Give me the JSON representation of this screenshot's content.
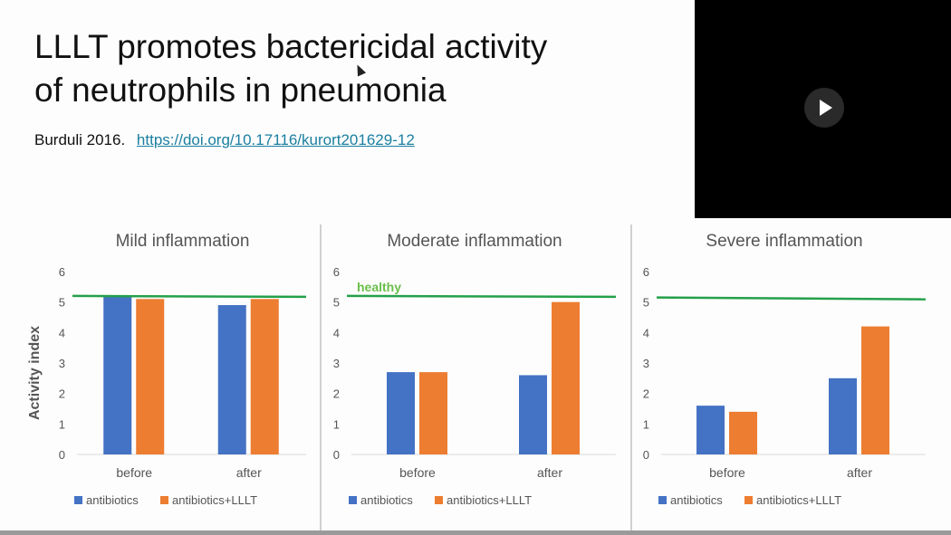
{
  "slide": {
    "title_line1": "LLLT promotes bactericidal activity",
    "title_line2": "of neutrophils in pneumonia",
    "citation": "Burduli 2016.",
    "link": "https://doi.org/10.17116/kurort201629-12"
  },
  "video": {
    "play_icon": "play-icon"
  },
  "colors": {
    "antibiotics": "#4472c4",
    "antibiotics_lllt": "#ed7d31",
    "healthy": "#24a04a"
  },
  "shared_ylabel": "Activity index",
  "chart_data": [
    {
      "type": "bar",
      "title": "Mild inflammation",
      "categories": [
        "before",
        "after"
      ],
      "series": [
        {
          "name": "antibiotics",
          "values": [
            5.2,
            4.9
          ]
        },
        {
          "name": "antibiotics+LLLT",
          "values": [
            5.1,
            5.1
          ]
        }
      ],
      "reference_line": {
        "value": 5.2,
        "label": ""
      },
      "ylim": [
        0,
        6
      ],
      "yticks": [
        0,
        1,
        2,
        3,
        4,
        5,
        6
      ],
      "legend": "bottom"
    },
    {
      "type": "bar",
      "title": "Moderate inflammation",
      "categories": [
        "before",
        "after"
      ],
      "series": [
        {
          "name": "antibiotics",
          "values": [
            2.7,
            2.6
          ]
        },
        {
          "name": "antibiotics+LLLT",
          "values": [
            2.7,
            5.0
          ]
        }
      ],
      "reference_line": {
        "value": 5.2,
        "label": "healthy"
      },
      "ylim": [
        0,
        6
      ],
      "yticks": [
        0,
        1,
        2,
        3,
        4,
        5,
        6
      ],
      "legend": "bottom"
    },
    {
      "type": "bar",
      "title": "Severe inflammation",
      "categories": [
        "before",
        "after"
      ],
      "series": [
        {
          "name": "antibiotics",
          "values": [
            1.6,
            2.5
          ]
        },
        {
          "name": "antibiotics+LLLT",
          "values": [
            1.4,
            4.2
          ]
        }
      ],
      "reference_line": {
        "value": 5.15,
        "label": ""
      },
      "ylim": [
        0,
        6
      ],
      "yticks": [
        0,
        1,
        2,
        3,
        4,
        5,
        6
      ],
      "legend": "bottom"
    }
  ]
}
